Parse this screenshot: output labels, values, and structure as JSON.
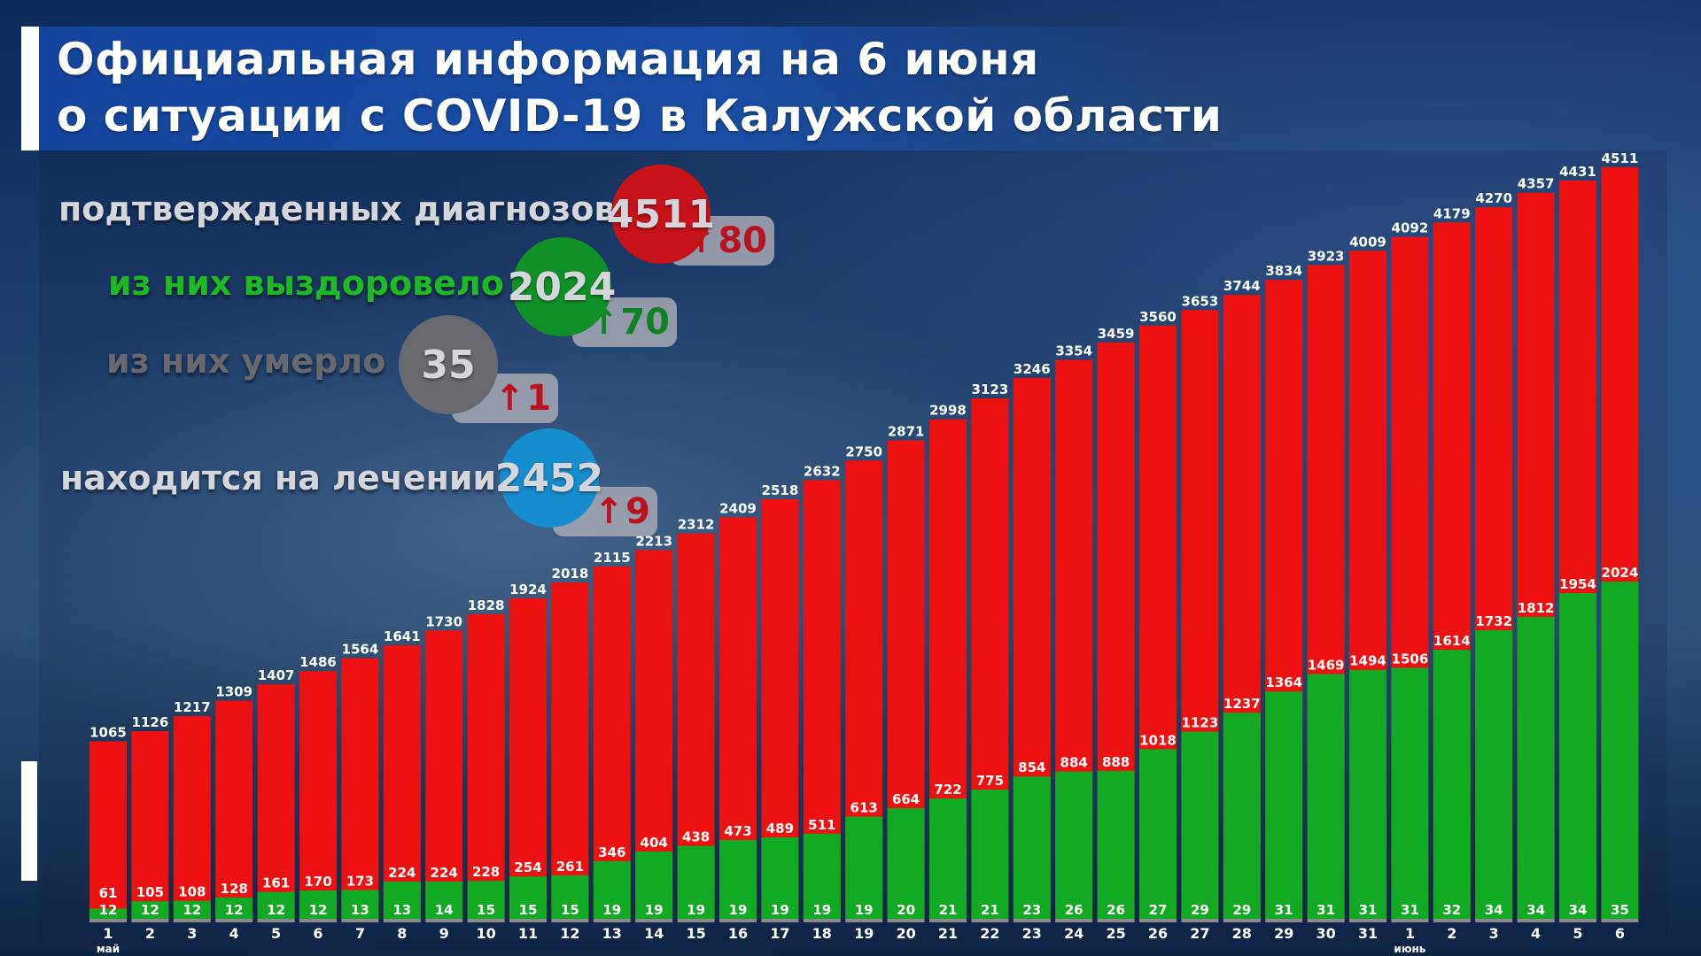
{
  "title": {
    "line1": "Официальная информация на 6 июня",
    "line2": "о ситуации с COVID-19 в Калужской области"
  },
  "stats": [
    {
      "label": "подтвержденных диагнозов",
      "value": "4511",
      "delta": "80",
      "label_color": "#ffffff",
      "circle_color": "#ee1111",
      "arrow_color": "#e0101a",
      "delta_color": "#e0101a"
    },
    {
      "label": "из них выздоровело",
      "value": "2024",
      "delta": "70",
      "label_color": "#22dd22",
      "circle_color": "#11aa22",
      "arrow_color": "#119922",
      "delta_color": "#119922"
    },
    {
      "label": "из них умерло",
      "value": "35",
      "delta": "1",
      "label_color": "#7a7a7a",
      "circle_color": "#7a7a7a",
      "arrow_color": "#e0101a",
      "delta_color": "#e0101a"
    },
    {
      "label": "находится на лечении",
      "value": "2452",
      "delta": "9",
      "label_color": "#ffffff",
      "circle_color": "#1aa6ee",
      "arrow_color": "#e0101a",
      "delta_color": "#e0101a"
    }
  ],
  "chart_data": {
    "type": "bar",
    "categories": [
      "1",
      "2",
      "3",
      "4",
      "5",
      "6",
      "7",
      "8",
      "9",
      "10",
      "11",
      "12",
      "13",
      "14",
      "15",
      "16",
      "17",
      "18",
      "19",
      "20",
      "21",
      "22",
      "23",
      "24",
      "25",
      "26",
      "27",
      "28",
      "29",
      "30",
      "31",
      "1",
      "2",
      "3",
      "4",
      "5",
      "6"
    ],
    "month_labels": [
      {
        "index": 0,
        "text": "май"
      },
      {
        "index": 31,
        "text": "июнь"
      }
    ],
    "series": [
      {
        "values": [
          1065,
          1126,
          1217,
          1309,
          1407,
          1486,
          1564,
          1641,
          1730,
          1828,
          1924,
          2018,
          2115,
          2213,
          2312,
          2409,
          2518,
          2632,
          2750,
          2871,
          2998,
          3123,
          3246,
          3354,
          3459,
          3560,
          3653,
          3744,
          3834,
          3923,
          4009,
          4092,
          4179,
          4270,
          4357,
          4431,
          4511
        ],
        "color": "#ee1111"
      },
      {
        "values": [
          61,
          105,
          108,
          128,
          161,
          170,
          173,
          224,
          224,
          228,
          254,
          261,
          346,
          404,
          438,
          473,
          489,
          511,
          613,
          664,
          722,
          775,
          854,
          884,
          888,
          1018,
          1123,
          1237,
          1364,
          1469,
          1494,
          1506,
          1614,
          1732,
          1812,
          1954,
          2024
        ],
        "color": "#11aa22"
      },
      {
        "values": [
          12,
          12,
          12,
          12,
          12,
          12,
          13,
          13,
          14,
          15,
          15,
          15,
          19,
          19,
          19,
          19,
          19,
          19,
          19,
          20,
          21,
          21,
          23,
          26,
          26,
          27,
          29,
          29,
          31,
          31,
          31,
          31,
          32,
          34,
          34,
          34,
          35
        ],
        "color": "#11aa22"
      }
    ],
    "ylim": [
      0,
      4600
    ],
    "grid": false
  }
}
